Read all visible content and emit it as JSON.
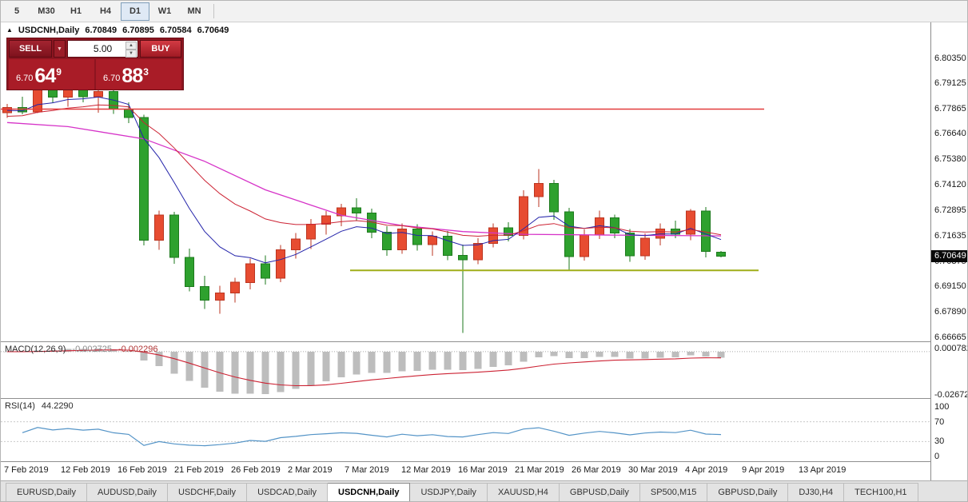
{
  "toolbar": {
    "timeframes": [
      "5",
      "M30",
      "H1",
      "H4",
      "D1",
      "W1",
      "MN"
    ],
    "active_timeframe": "D1"
  },
  "chart_info": {
    "marker": "▲",
    "symbol_title": "USDCNH,Daily",
    "open": "6.70849",
    "high": "6.70895",
    "low": "6.70584",
    "close": "6.70649"
  },
  "icons": {
    "dropdown_arrow": "▼",
    "spinner_up": "▲",
    "spinner_down": "▼"
  },
  "trade_panel": {
    "sell_label": "SELL",
    "buy_label": "BUY",
    "volume": "5.00",
    "sell_price": {
      "prefix": "6.70",
      "main": "64",
      "sup": "9"
    },
    "buy_price": {
      "prefix": "6.70",
      "main": "88",
      "sup": "3"
    }
  },
  "price_axis": {
    "labels": [
      "6.80350",
      "6.79125",
      "6.77865",
      "6.76640",
      "6.75380",
      "6.74120",
      "6.72895",
      "6.71635",
      "6.70375",
      "6.69150",
      "6.67890",
      "6.66665"
    ],
    "current_price": "6.70649"
  },
  "macd_panel": {
    "header": "MACD(12,26,9)",
    "macd_value": "-0.002725",
    "signal_value": "-0.002296",
    "axis_max": "0.000782",
    "axis_min": "-0.026721"
  },
  "rsi_panel": {
    "header": "RSI(14)",
    "value": "44.2290",
    "axis_labels": [
      "100",
      "70",
      "30",
      "0"
    ]
  },
  "date_axis": {
    "labels": [
      "7 Feb 2019",
      "12 Feb 2019",
      "16 Feb 2019",
      "21 Feb 2019",
      "26 Feb 2019",
      "2 Mar 2019",
      "7 Mar 2019",
      "12 Mar 2019",
      "16 Mar 2019",
      "21 Mar 2019",
      "26 Mar 2019",
      "30 Mar 2019",
      "4 Apr 2019",
      "9 Apr 2019",
      "13 Apr 2019"
    ]
  },
  "tabs": {
    "items": [
      "EURUSD,Daily",
      "AUDUSD,Daily",
      "USDCHF,Daily",
      "USDCAD,Daily",
      "USDCNH,Daily",
      "USDJPY,Daily",
      "XAUUSD,H4",
      "GBPUSD,Daily",
      "SP500,M15",
      "GBPUSD,Daily",
      "DJ30,H4",
      "TECH100,H1"
    ],
    "active": "USDCNH,Daily"
  },
  "chart_data": {
    "type": "candlestick",
    "symbol": "USDCNH",
    "timeframe": "Daily",
    "y_range": [
      6.66665,
      6.8035
    ],
    "candles": [
      [
        6.7768,
        6.7812,
        6.7742,
        6.7794
      ],
      [
        6.7794,
        6.7846,
        6.776,
        6.7772
      ],
      [
        6.7772,
        6.7926,
        6.7766,
        6.7898
      ],
      [
        6.7898,
        6.7934,
        6.7818,
        6.7844
      ],
      [
        6.7844,
        6.7898,
        6.7798,
        6.7882
      ],
      [
        6.7882,
        6.792,
        6.782,
        6.7846
      ],
      [
        6.7846,
        6.7886,
        6.7768,
        6.7872
      ],
      [
        6.7872,
        6.789,
        6.7762,
        6.7786
      ],
      [
        6.7786,
        6.782,
        6.7718,
        6.7744
      ],
      [
        6.7744,
        6.7758,
        6.7118,
        6.7142
      ],
      [
        6.7142,
        6.7288,
        6.7096,
        6.7266
      ],
      [
        6.7266,
        6.7282,
        6.7028,
        6.7058
      ],
      [
        6.7058,
        6.7102,
        6.6892,
        6.6916
      ],
      [
        6.6916,
        6.6968,
        6.6806,
        6.6848
      ],
      [
        6.6848,
        6.692,
        6.6782,
        6.6884
      ],
      [
        6.6884,
        6.6958,
        6.6836,
        6.6936
      ],
      [
        6.6936,
        6.7052,
        6.6902,
        6.7028
      ],
      [
        6.7028,
        6.7068,
        6.6926,
        6.6956
      ],
      [
        6.6956,
        6.712,
        6.6936,
        6.7096
      ],
      [
        6.7096,
        6.7178,
        6.7052,
        6.7148
      ],
      [
        6.7148,
        6.7246,
        6.71,
        6.7222
      ],
      [
        6.7222,
        6.7286,
        6.717,
        6.7262
      ],
      [
        6.7262,
        6.7322,
        6.7212,
        6.7302
      ],
      [
        6.7302,
        6.7348,
        6.724,
        6.7276
      ],
      [
        6.7276,
        6.7298,
        6.7152,
        6.7182
      ],
      [
        6.7182,
        6.7212,
        6.7066,
        6.7096
      ],
      [
        6.7096,
        6.7226,
        6.7076,
        6.7198
      ],
      [
        6.7198,
        6.7222,
        6.7092,
        6.7122
      ],
      [
        6.7122,
        6.7186,
        6.7066,
        6.7162
      ],
      [
        6.7162,
        6.7188,
        6.7044,
        6.7068
      ],
      [
        6.7068,
        6.7122,
        6.6688,
        6.7046
      ],
      [
        6.7046,
        6.7152,
        6.7026,
        6.7128
      ],
      [
        6.7128,
        6.7226,
        6.7108,
        6.7204
      ],
      [
        6.7204,
        6.7232,
        6.7136,
        6.7166
      ],
      [
        6.7166,
        6.7388,
        6.7146,
        6.7356
      ],
      [
        6.7356,
        6.7492,
        6.7306,
        6.7422
      ],
      [
        6.7422,
        6.7438,
        6.7242,
        6.7282
      ],
      [
        6.7282,
        6.7302,
        6.6996,
        6.7062
      ],
      [
        6.7062,
        6.7196,
        6.7042,
        6.7168
      ],
      [
        6.7168,
        6.7288,
        6.7148,
        6.7252
      ],
      [
        6.7252,
        6.7268,
        6.7152,
        6.7178
      ],
      [
        6.7178,
        6.7198,
        6.7036,
        6.7066
      ],
      [
        6.7066,
        6.7176,
        6.7046,
        6.7152
      ],
      [
        6.7152,
        6.7226,
        6.7118,
        6.7198
      ],
      [
        6.7198,
        6.7238,
        6.7152,
        6.7172
      ],
      [
        6.7172,
        6.7296,
        6.7142,
        6.7286
      ],
      [
        6.7286,
        6.7306,
        6.7058,
        6.7088
      ],
      [
        6.70849,
        6.70895,
        6.70584,
        6.70649
      ]
    ],
    "moving_averages": [
      {
        "name": "fast",
        "style": "ema",
        "period": 7,
        "seed": 6.7775,
        "color": "#2424aa"
      },
      {
        "name": "medium",
        "style": "ema",
        "period": 16,
        "seed": 6.7745,
        "color": "#cc2233"
      },
      {
        "name": "slow",
        "style": "points",
        "color": "#d633c8",
        "points": [
          [
            0,
            6.772
          ],
          [
            4,
            6.77
          ],
          [
            9,
            6.764
          ],
          [
            13,
            6.753
          ],
          [
            17,
            6.739
          ],
          [
            22,
            6.7265
          ],
          [
            26,
            6.7215
          ],
          [
            30,
            6.7185
          ],
          [
            34,
            6.7172
          ],
          [
            40,
            6.7168
          ],
          [
            47,
            6.7164
          ]
        ]
      }
    ],
    "hlines": [
      {
        "name": "resistance",
        "price": 6.7786,
        "color": "#e23b3b",
        "width": 1.6,
        "x_extent": [
          0,
          955
        ]
      },
      {
        "name": "support",
        "price": 6.6995,
        "color": "#9fae18",
        "width": 2,
        "x_extent": [
          437,
          948
        ]
      }
    ],
    "indicators": [
      {
        "type": "macd",
        "params": [
          12,
          26,
          9
        ]
      },
      {
        "type": "rsi",
        "params": [
          14
        ]
      }
    ]
  },
  "colors": {
    "candle_up": "#e74c31",
    "candle_up_border": "#bb3520",
    "candle_down": "#2ea12e",
    "candle_down_border": "#1d7a1d",
    "macd_histogram": "#bdbdbd",
    "macd_signal": "#cc2233",
    "rsi_line": "#5494c7",
    "current_price_bg": "#0a0a0a"
  }
}
